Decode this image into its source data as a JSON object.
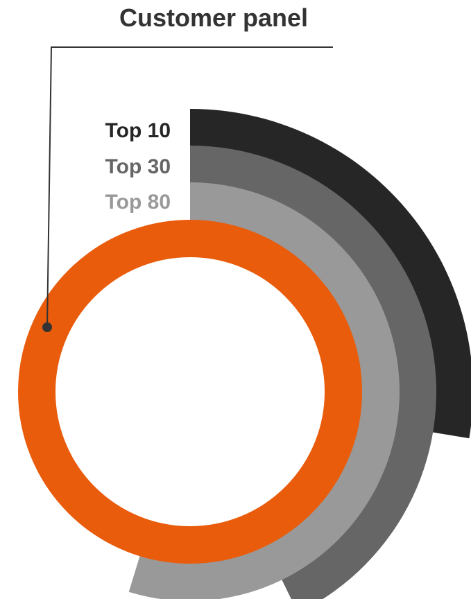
{
  "title": "Customer panel",
  "tiers": [
    {
      "label": "Top 10",
      "color": "#262626"
    },
    {
      "label": "Top 30",
      "color": "#666666"
    },
    {
      "label": "Top 80",
      "color": "#999999"
    }
  ],
  "ring_color": "#E95C0C",
  "callout_color": "#333333"
}
